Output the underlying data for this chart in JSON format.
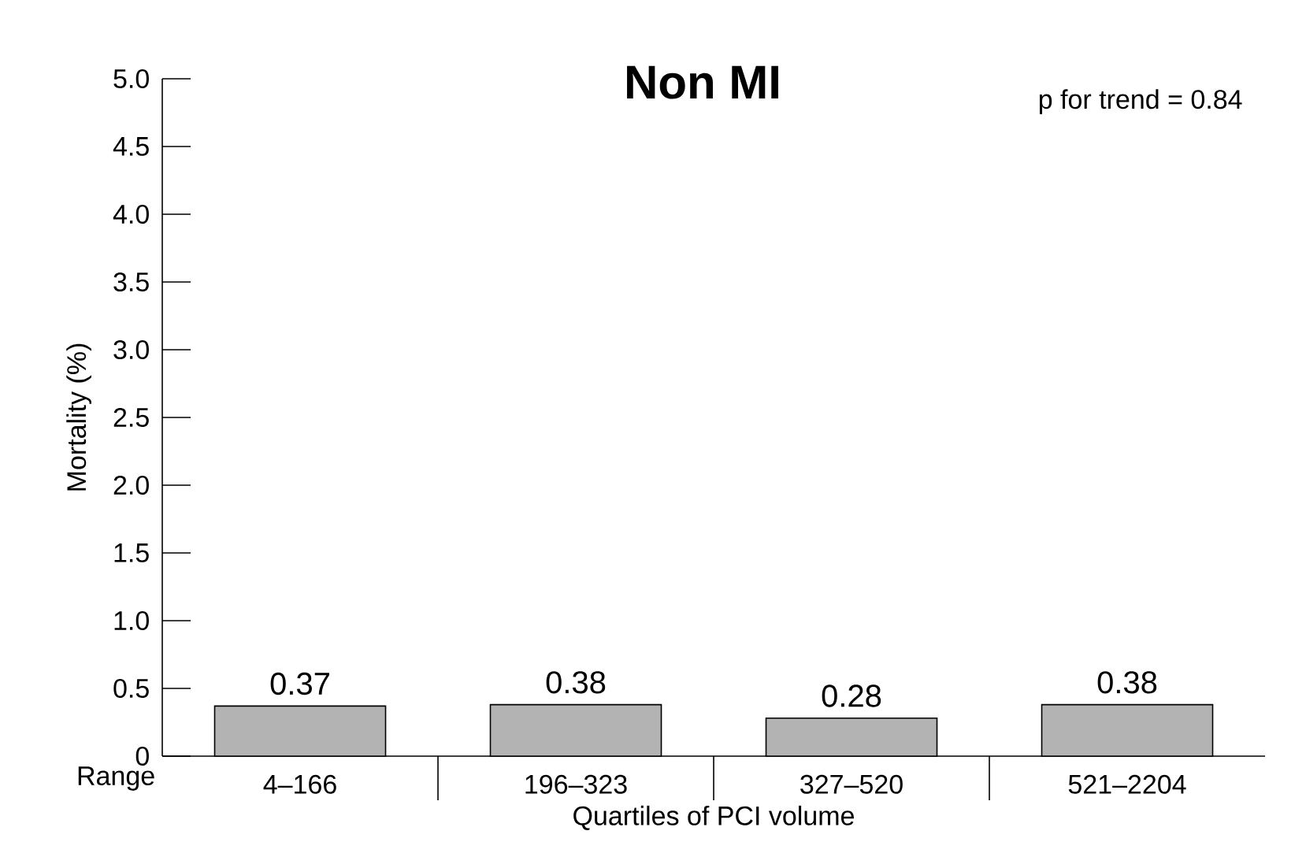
{
  "chart_data": {
    "type": "bar",
    "title": "Non MI",
    "xlabel": "Quartiles of PCI volume",
    "ylabel": "Mortality (%)",
    "annotations": [
      "p for trend = 0.84",
      "Range"
    ],
    "categories": [
      "4–166",
      "196–323",
      "327–520",
      "521–2204"
    ],
    "values": [
      0.37,
      0.38,
      0.28,
      0.38
    ],
    "color": "#b3b3b3",
    "data_labels": true,
    "ylim": [
      0,
      5
    ],
    "yticks": [
      0,
      0.5,
      {
        "value": 1,
        "label": "1.0"
      },
      1.5,
      {
        "value": 2,
        "label": "2.0"
      },
      2.5,
      {
        "value": 3,
        "label": "3.0"
      },
      3.5,
      {
        "value": 4,
        "label": "4.0"
      },
      4.5,
      {
        "value": 5,
        "label": "5.0"
      }
    ],
    "grid": false
  }
}
